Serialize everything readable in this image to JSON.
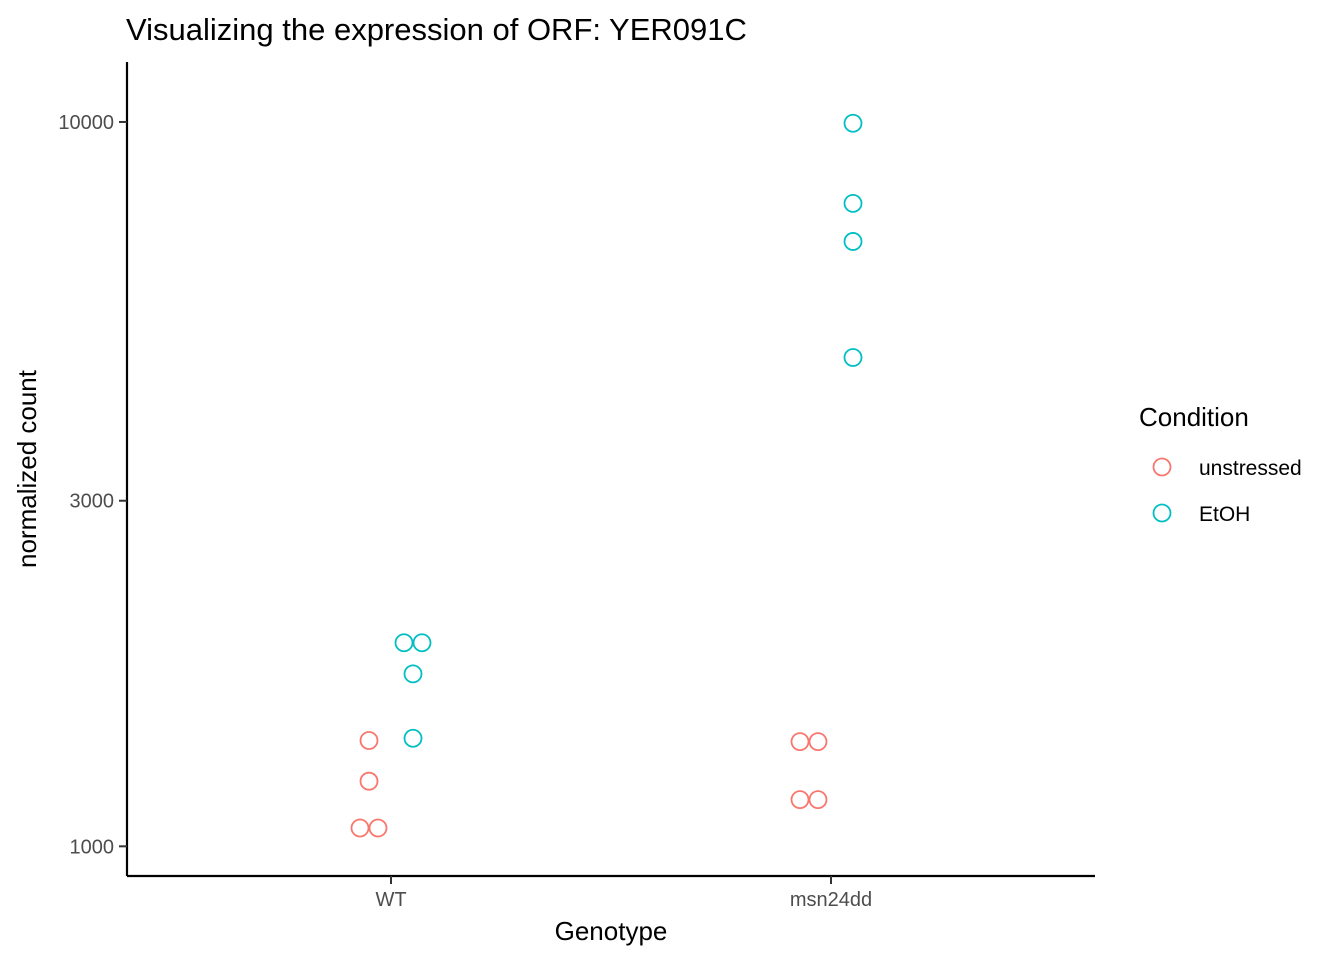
{
  "chart_data": {
    "type": "scatter",
    "title": "Visualizing the expression of ORF: YER091C",
    "xlabel": "Genotype",
    "ylabel": "normalized count",
    "y_scale": "log10",
    "ylim": [
      910,
      12100
    ],
    "yticks": [
      1000,
      3000,
      10000
    ],
    "ytick_labels": [
      "1000",
      "3000",
      "10000"
    ],
    "categories": [
      "WT",
      "msn24dd"
    ],
    "grid": false,
    "legend": {
      "title": "Condition",
      "position": "right"
    },
    "series": [
      {
        "name": "unstressed",
        "color": "#F8766D",
        "points": [
          {
            "x": "WT",
            "y": 1060
          },
          {
            "x": "WT",
            "y": 1060
          },
          {
            "x": "WT",
            "y": 1230
          },
          {
            "x": "WT",
            "y": 1400
          },
          {
            "x": "msn24dd",
            "y": 1160
          },
          {
            "x": "msn24dd",
            "y": 1160
          },
          {
            "x": "msn24dd",
            "y": 1395
          },
          {
            "x": "msn24dd",
            "y": 1395
          }
        ]
      },
      {
        "name": "EtOH",
        "color": "#00BFC4",
        "points": [
          {
            "x": "WT",
            "y": 1410
          },
          {
            "x": "WT",
            "y": 1730
          },
          {
            "x": "WT",
            "y": 1910
          },
          {
            "x": "WT",
            "y": 1910
          },
          {
            "x": "msn24dd",
            "y": 4730
          },
          {
            "x": "msn24dd",
            "y": 6840
          },
          {
            "x": "msn24dd",
            "y": 7720
          },
          {
            "x": "msn24dd",
            "y": 9960
          }
        ]
      }
    ]
  }
}
